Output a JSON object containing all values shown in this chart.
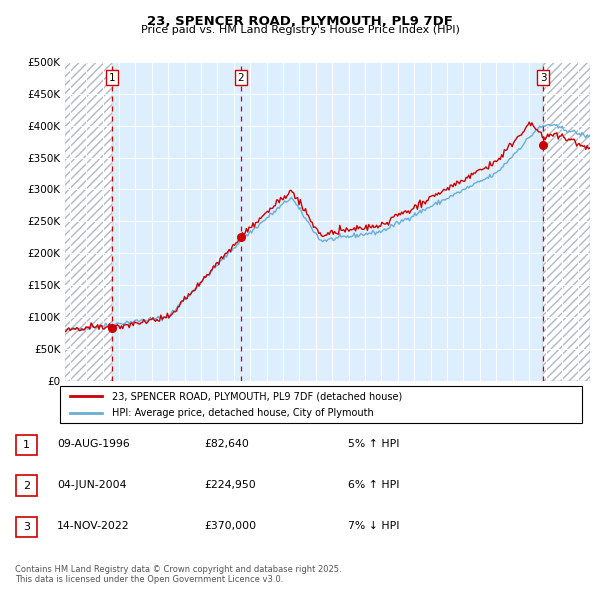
{
  "title1": "23, SPENCER ROAD, PLYMOUTH, PL9 7DF",
  "title2": "Price paid vs. HM Land Registry's House Price Index (HPI)",
  "ytick_vals": [
    0,
    50000,
    100000,
    150000,
    200000,
    250000,
    300000,
    350000,
    400000,
    450000,
    500000
  ],
  "xlim": [
    1993.7,
    2025.7
  ],
  "ylim": [
    0,
    500000
  ],
  "sale_dates": [
    1996.6,
    2004.42,
    2022.87
  ],
  "sale_prices": [
    82640,
    224950,
    370000
  ],
  "sale_labels": [
    "1",
    "2",
    "3"
  ],
  "legend_line1": "23, SPENCER ROAD, PLYMOUTH, PL9 7DF (detached house)",
  "legend_line2": "HPI: Average price, detached house, City of Plymouth",
  "table_rows": [
    {
      "num": "1",
      "date": "09-AUG-1996",
      "price": "£82,640",
      "change": "5% ↑ HPI"
    },
    {
      "num": "2",
      "date": "04-JUN-2004",
      "price": "£224,950",
      "change": "6% ↑ HPI"
    },
    {
      "num": "3",
      "date": "14-NOV-2022",
      "price": "£370,000",
      "change": "7% ↓ HPI"
    }
  ],
  "footer": "Contains HM Land Registry data © Crown copyright and database right 2025.\nThis data is licensed under the Open Government Licence v3.0.",
  "hpi_color": "#6aaed6",
  "price_color": "#cc0000",
  "bg_color": "#ddeeff",
  "grid_color": "#ffffff",
  "vline_color": "#cc0000",
  "dot_color": "#cc0000",
  "hatch_bg": "#e8eef5"
}
